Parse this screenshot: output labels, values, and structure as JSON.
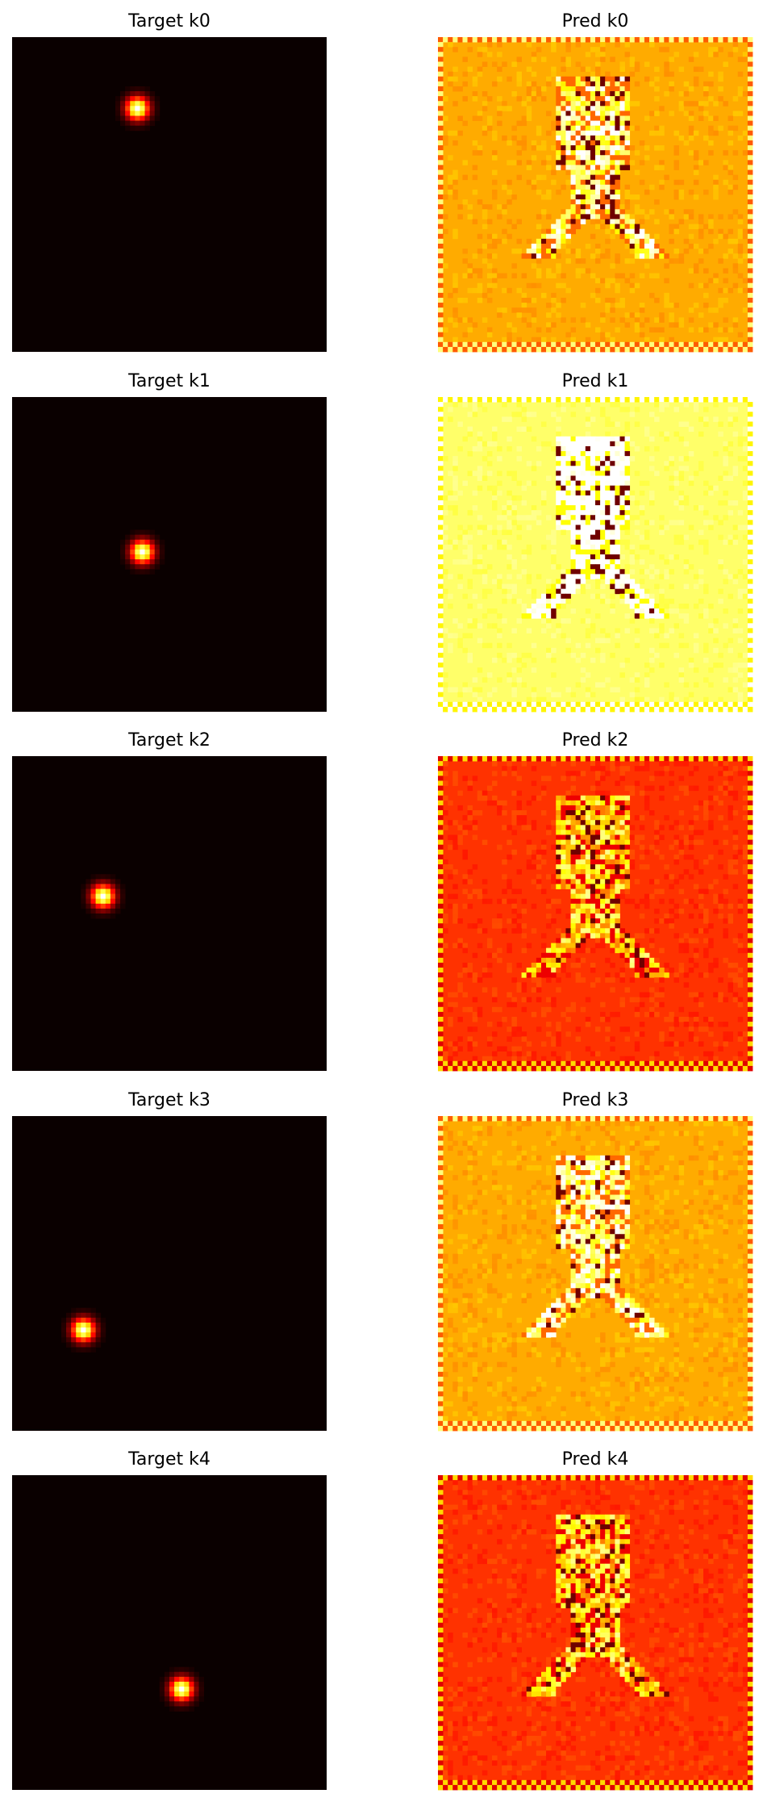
{
  "figure": {
    "colormap": "hot",
    "background": "#ffffff"
  },
  "chart_data": [
    {
      "type": "heatmap",
      "title": "Target k0",
      "grid": false,
      "axes": "off",
      "grid_size": 64,
      "content": "gaussian-peak",
      "peak_center": [
        25,
        14
      ]
    },
    {
      "type": "heatmap",
      "title": "Pred k0",
      "grid": false,
      "axes": "off",
      "grid_size": 64,
      "content": "noisy-figure",
      "base_level": 0.62
    },
    {
      "type": "heatmap",
      "title": "Target k1",
      "grid": false,
      "axes": "off",
      "grid_size": 64,
      "content": "gaussian-peak",
      "peak_center": [
        26,
        31
      ]
    },
    {
      "type": "heatmap",
      "title": "Pred k1",
      "grid": false,
      "axes": "off",
      "grid_size": 64,
      "content": "noisy-figure",
      "base_level": 0.85
    },
    {
      "type": "heatmap",
      "title": "Target k2",
      "grid": false,
      "axes": "off",
      "grid_size": 64,
      "content": "gaussian-peak",
      "peak_center": [
        18,
        28
      ]
    },
    {
      "type": "heatmap",
      "title": "Pred k2",
      "grid": false,
      "axes": "off",
      "grid_size": 64,
      "content": "noisy-figure",
      "base_level": 0.44
    },
    {
      "type": "heatmap",
      "title": "Target k3",
      "grid": false,
      "axes": "off",
      "grid_size": 64,
      "content": "gaussian-peak",
      "peak_center": [
        14,
        43
      ]
    },
    {
      "type": "heatmap",
      "title": "Pred k3",
      "grid": false,
      "axes": "off",
      "grid_size": 64,
      "content": "noisy-figure",
      "base_level": 0.62
    },
    {
      "type": "heatmap",
      "title": "Target k4",
      "grid": false,
      "axes": "off",
      "grid_size": 64,
      "content": "gaussian-peak",
      "peak_center": [
        34,
        43
      ]
    },
    {
      "type": "heatmap",
      "title": "Pred k4",
      "grid": false,
      "axes": "off",
      "grid_size": 64,
      "content": "noisy-figure",
      "base_level": 0.44
    }
  ]
}
